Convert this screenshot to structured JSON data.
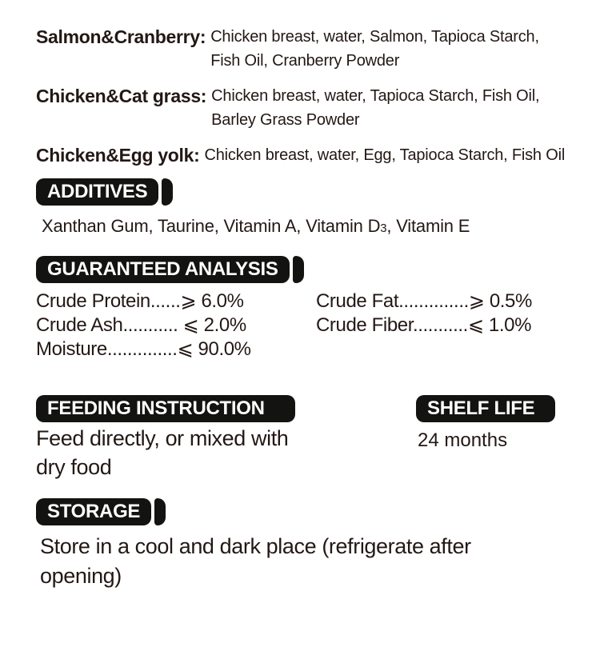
{
  "colors": {
    "text": "#231815",
    "badge_background": "#131311",
    "badge_text": "#ffffff",
    "page_background": "#ffffff"
  },
  "flavors": [
    {
      "label": "Salmon&Cranberry:",
      "lines": [
        "Chicken breast,  water, Salmon, Tapioca Starch,",
        "Fish Oil, Cranberry Powder"
      ]
    },
    {
      "label": "Chicken&Cat grass:",
      "lines": [
        "Chicken breast, water, Tapioca Starch, Fish Oil,",
        "Barley Grass Powder"
      ]
    },
    {
      "label": "Chicken&Egg yolk:",
      "lines": [
        "Chicken breast, water, Egg, Tapioca Starch, Fish Oil"
      ]
    }
  ],
  "additives": {
    "heading": "ADDITIVES",
    "text_before_subscript": "Xanthan Gum, Taurine, Vitamin A, Vitamin D",
    "subscript": "3",
    "text_after_subscript": ", Vitamin E"
  },
  "analysis": {
    "heading": "GUARANTEED ANALYSIS",
    "left_rows": [
      "Crude Protein......⩾ 6.0%",
      "Crude Ash........... ⩽ 2.0%",
      "Moisture..............⩽ 90.0%"
    ],
    "right_rows": [
      "Crude Fat..............⩾ 0.5%",
      "Crude Fiber...........⩽ 1.0%"
    ]
  },
  "feeding": {
    "heading": "FEEDING INSTRUCTION",
    "lines": [
      "Feed directly, or mixed with",
      "dry food"
    ]
  },
  "shelf_life": {
    "heading": "SHELF LIFE",
    "value": "24 months"
  },
  "storage": {
    "heading": "STORAGE",
    "lines": [
      "Store in a cool and dark place (refrigerate after",
      "opening)"
    ]
  }
}
